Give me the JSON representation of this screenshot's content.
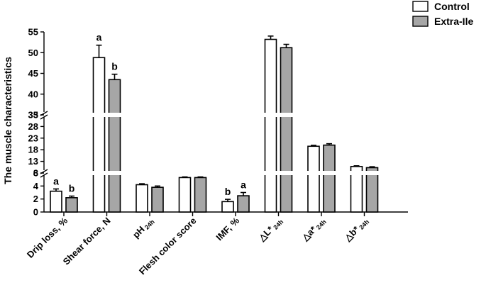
{
  "chart_data": {
    "type": "bar",
    "ylabel": "The muscle characteristics",
    "axis_breaks": [
      [
        6,
        8
      ],
      [
        33,
        35
      ]
    ],
    "ylim": [
      0,
      55
    ],
    "yticks": [
      0,
      2,
      4,
      6,
      8,
      13,
      18,
      23,
      28,
      33,
      35,
      40,
      45,
      50,
      55
    ],
    "categories": [
      {
        "main": "Drip loss, %",
        "sub": ""
      },
      {
        "main": "Shear force, N",
        "sub": ""
      },
      {
        "main": "pH",
        "sub": "24h"
      },
      {
        "main": "Flesh color score",
        "sub": ""
      },
      {
        "main": "IMF, %",
        "sub": ""
      },
      {
        "main": "△L*",
        "sub": "24h"
      },
      {
        "main": "△a*",
        "sub": "24h"
      },
      {
        "main": "△b*",
        "sub": "24h"
      }
    ],
    "series": [
      {
        "name": "Control",
        "color": "#ffffff",
        "values": [
          3.2,
          48.8,
          4.2,
          5.3,
          1.6,
          53.2,
          19.5,
          10.8
        ],
        "errors": [
          0.35,
          3.0,
          0.15,
          0.1,
          0.35,
          0.8,
          0.4,
          0.3
        ],
        "labels": [
          "a",
          "a",
          "",
          "",
          "b",
          "",
          "",
          ""
        ]
      },
      {
        "name": "Extra-Ile",
        "color": "#a6a6a6",
        "values": [
          2.2,
          43.5,
          3.8,
          5.3,
          2.5,
          51.2,
          20.0,
          10.3
        ],
        "errors": [
          0.25,
          1.3,
          0.2,
          0.1,
          0.5,
          0.8,
          0.6,
          0.4
        ],
        "labels": [
          "b",
          "b",
          "",
          "",
          "a",
          "",
          "",
          ""
        ]
      }
    ]
  }
}
